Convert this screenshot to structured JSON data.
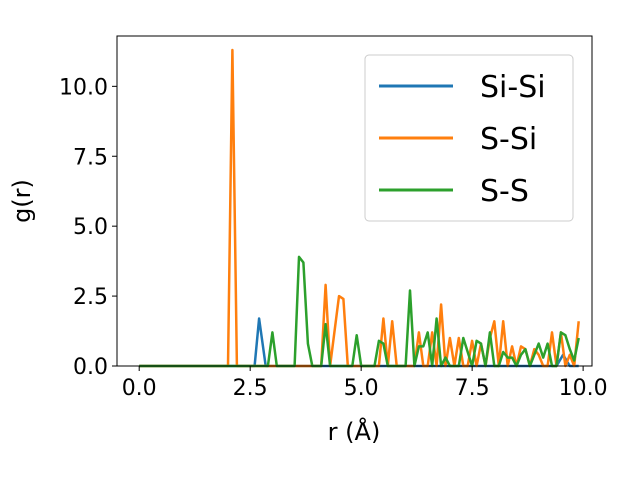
{
  "chart_data": {
    "type": "line",
    "xlabel": "r (Å)",
    "ylabel": "g(r)",
    "xlim": [
      -0.5,
      10.2
    ],
    "ylim": [
      0,
      11.8
    ],
    "x_ticks": [
      0.0,
      2.5,
      5.0,
      7.5,
      10.0
    ],
    "x_tick_labels": [
      "0.0",
      "2.5",
      "5.0",
      "7.5",
      "10.0"
    ],
    "y_ticks": [
      0.0,
      2.5,
      5.0,
      7.5,
      10.0
    ],
    "y_tick_labels": [
      "0.0",
      "2.5",
      "5.0",
      "7.5",
      "10.0"
    ],
    "grid": false,
    "legend_position": "top-right",
    "colors": {
      "Si-Si": "#1f77b4",
      "S-Si": "#ff7f0e",
      "S-S": "#2ca02c"
    },
    "series": [
      {
        "name": "Si-Si",
        "x": [
          0.0,
          2.6,
          2.7,
          2.85,
          9.4,
          9.55,
          9.7,
          9.9
        ],
        "y": [
          0.0,
          0.0,
          1.7,
          0.0,
          0.0,
          0.4,
          0.0,
          0.0
        ]
      },
      {
        "name": "S-Si",
        "x": [
          0.0,
          2.0,
          2.1,
          2.2,
          4.1,
          4.2,
          4.3,
          4.5,
          4.6,
          4.7,
          5.4,
          5.5,
          5.6,
          5.7,
          5.8,
          5.9,
          6.2,
          6.3,
          6.4,
          6.5,
          6.6,
          6.7,
          6.8,
          6.9,
          7.0,
          7.1,
          7.2,
          7.3,
          7.4,
          7.5,
          7.6,
          7.7,
          7.8,
          7.9,
          8.0,
          8.1,
          8.2,
          8.3,
          8.4,
          8.5,
          8.6,
          8.7,
          8.8,
          8.9,
          9.0,
          9.1,
          9.2,
          9.3,
          9.4,
          9.5,
          9.6,
          9.7,
          9.8,
          9.9
        ],
        "y": [
          0.0,
          0.0,
          11.3,
          0.0,
          0.0,
          2.9,
          0.0,
          2.5,
          2.4,
          0.0,
          0.0,
          1.7,
          0.0,
          1.6,
          0.0,
          0.0,
          0.0,
          1.2,
          0.0,
          0.0,
          1.2,
          0.0,
          2.2,
          0.0,
          1.0,
          0.0,
          1.0,
          0.0,
          0.0,
          0.9,
          0.0,
          0.8,
          0.0,
          1.0,
          1.6,
          0.0,
          1.6,
          0.0,
          0.7,
          0.0,
          0.7,
          0.6,
          0.0,
          0.6,
          0.4,
          0.0,
          0.0,
          1.2,
          0.0,
          1.2,
          0.0,
          0.4,
          0.0,
          1.6
        ]
      },
      {
        "name": "S-S",
        "x": [
          0.0,
          2.9,
          3.0,
          3.1,
          3.5,
          3.6,
          3.7,
          3.8,
          3.9,
          4.1,
          4.2,
          4.3,
          4.7,
          4.8,
          4.9,
          5.0,
          5.1,
          5.2,
          5.3,
          5.4,
          5.5,
          5.6,
          5.7,
          5.8,
          5.9,
          6.0,
          6.1,
          6.2,
          6.3,
          6.4,
          6.5,
          6.6,
          6.7,
          6.8,
          6.9,
          7.0,
          7.1,
          7.2,
          7.3,
          7.4,
          7.5,
          7.6,
          7.7,
          7.8,
          7.9,
          8.0,
          8.1,
          8.2,
          8.3,
          8.4,
          8.5,
          8.6,
          8.7,
          8.8,
          8.9,
          9.0,
          9.1,
          9.2,
          9.3,
          9.4,
          9.5,
          9.6,
          9.7,
          9.8,
          9.9
        ],
        "y": [
          0.0,
          0.0,
          1.2,
          0.0,
          0.0,
          3.9,
          3.7,
          0.8,
          0.0,
          0.0,
          1.5,
          0.0,
          0.0,
          0.0,
          1.1,
          0.0,
          0.0,
          0.0,
          0.0,
          0.9,
          0.8,
          0.0,
          0.0,
          0.0,
          0.0,
          0.0,
          2.7,
          0.0,
          0.7,
          0.7,
          1.2,
          0.0,
          1.7,
          0.0,
          0.3,
          0.0,
          0.0,
          0.0,
          1.0,
          0.5,
          0.0,
          0.9,
          0.8,
          0.0,
          1.2,
          0.0,
          0.0,
          0.5,
          0.3,
          0.3,
          0.0,
          0.4,
          0.6,
          0.0,
          0.4,
          0.8,
          0.3,
          0.8,
          0.0,
          0.0,
          1.2,
          1.1,
          0.6,
          0.2,
          1.0
        ]
      }
    ]
  }
}
